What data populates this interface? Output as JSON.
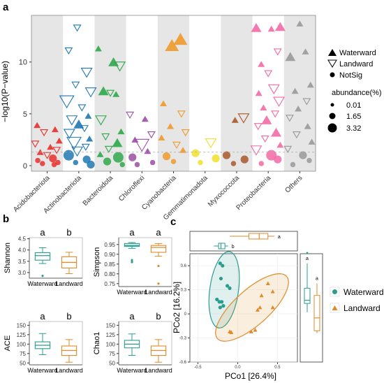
{
  "panel_labels": {
    "a": "a",
    "b": "b",
    "c": "c"
  },
  "colors": {
    "Acidobacteriota": "#e8302b",
    "Actinobacteriota": "#1f78b4",
    "Bacteroidota": "#2ea84a",
    "Chloroflexi": "#9b4da6",
    "Cyanobacteria": "#ee9a2a",
    "Gemmatimonadota": "#eee02a",
    "Myxococcota": "#a9572a",
    "Proteobacteria": "#f26aa5",
    "Others": "#999999",
    "waterward": "#2a9d8f",
    "landward": "#e08a2a",
    "band": "#e6e6e6"
  },
  "chart_data": [
    {
      "type": "scatter",
      "id": "manhattan",
      "ylabel": "−log10(P−value)",
      "yticks": [
        "0",
        "5",
        "10"
      ],
      "ylim": [
        0,
        14.5
      ],
      "categories": [
        "Acidobacteriota",
        "Actinobacteriota",
        "Bacteroidota",
        "Chloroflexi",
        "Cyanobacteria",
        "Gemmatimonadota",
        "Myxococcota",
        "Proteobacteria",
        "Others"
      ],
      "legend": {
        "shape_items": [
          "Waterward",
          "Landward",
          "NotSig"
        ],
        "size_title": "abundance(%)",
        "size_items": [
          "0.01",
          "1.65",
          "3.32"
        ]
      },
      "points": [
        {
          "cat": 0,
          "y": 3.9,
          "t": "W",
          "s": 1
        },
        {
          "cat": 0,
          "y": 3.5,
          "t": "W",
          "s": 1
        },
        {
          "cat": 0,
          "y": 3.2,
          "t": "L",
          "s": 1
        },
        {
          "cat": 0,
          "y": 2.4,
          "t": "W",
          "s": 1
        },
        {
          "cat": 0,
          "y": 2.1,
          "t": "L",
          "s": 1
        },
        {
          "cat": 0,
          "y": 1.8,
          "t": "W",
          "s": 1
        },
        {
          "cat": 0,
          "y": 1.5,
          "t": "L",
          "s": 1
        },
        {
          "cat": 0,
          "y": 1.3,
          "t": "W",
          "s": 1
        },
        {
          "cat": 0,
          "y": 1.0,
          "t": "L",
          "s": 1
        },
        {
          "cat": 0,
          "y": 0.7,
          "t": "N",
          "s": 2
        },
        {
          "cat": 0,
          "y": 0.5,
          "t": "N",
          "s": 1
        },
        {
          "cat": 0,
          "y": 0.3,
          "t": "N",
          "s": 1
        },
        {
          "cat": 0,
          "y": 0.2,
          "t": "N",
          "s": 1
        },
        {
          "cat": 0,
          "y": 0.1,
          "t": "N",
          "s": 1
        },
        {
          "cat": 1,
          "y": 13.3,
          "t": "L",
          "s": 1
        },
        {
          "cat": 1,
          "y": 11.1,
          "t": "L",
          "s": 1
        },
        {
          "cat": 1,
          "y": 9.0,
          "t": "L",
          "s": 2
        },
        {
          "cat": 1,
          "y": 7.8,
          "t": "L",
          "s": 1
        },
        {
          "cat": 1,
          "y": 7.1,
          "t": "L",
          "s": 2
        },
        {
          "cat": 1,
          "y": 6.2,
          "t": "L",
          "s": 3
        },
        {
          "cat": 1,
          "y": 5.6,
          "t": "L",
          "s": 1
        },
        {
          "cat": 1,
          "y": 4.8,
          "t": "W",
          "s": 1
        },
        {
          "cat": 1,
          "y": 4.4,
          "t": "L",
          "s": 2
        },
        {
          "cat": 1,
          "y": 4.0,
          "t": "W",
          "s": 2
        },
        {
          "cat": 1,
          "y": 3.6,
          "t": "L",
          "s": 1
        },
        {
          "cat": 1,
          "y": 3.1,
          "t": "L",
          "s": 2
        },
        {
          "cat": 1,
          "y": 2.6,
          "t": "W",
          "s": 1
        },
        {
          "cat": 1,
          "y": 2.2,
          "t": "L",
          "s": 3
        },
        {
          "cat": 1,
          "y": 1.8,
          "t": "L",
          "s": 1
        },
        {
          "cat": 1,
          "y": 1.4,
          "t": "L",
          "s": 2
        },
        {
          "cat": 1,
          "y": 1.0,
          "t": "N",
          "s": 3
        },
        {
          "cat": 1,
          "y": 0.6,
          "t": "N",
          "s": 2
        },
        {
          "cat": 1,
          "y": 0.3,
          "t": "N",
          "s": 1
        },
        {
          "cat": 1,
          "y": 0.1,
          "t": "N",
          "s": 2
        },
        {
          "cat": 2,
          "y": 11.3,
          "t": "W",
          "s": 1
        },
        {
          "cat": 2,
          "y": 10.0,
          "t": "W",
          "s": 2
        },
        {
          "cat": 2,
          "y": 9.6,
          "t": "L",
          "s": 2
        },
        {
          "cat": 2,
          "y": 7.2,
          "t": "W",
          "s": 2
        },
        {
          "cat": 2,
          "y": 7.0,
          "t": "L",
          "s": 1
        },
        {
          "cat": 2,
          "y": 6.9,
          "t": "W",
          "s": 1
        },
        {
          "cat": 2,
          "y": 4.4,
          "t": "L",
          "s": 2
        },
        {
          "cat": 2,
          "y": 3.3,
          "t": "W",
          "s": 1
        },
        {
          "cat": 2,
          "y": 2.8,
          "t": "L",
          "s": 1
        },
        {
          "cat": 2,
          "y": 2.2,
          "t": "W",
          "s": 2
        },
        {
          "cat": 2,
          "y": 1.6,
          "t": "L",
          "s": 1
        },
        {
          "cat": 2,
          "y": 1.1,
          "t": "W",
          "s": 1
        },
        {
          "cat": 2,
          "y": 0.8,
          "t": "N",
          "s": 3
        },
        {
          "cat": 2,
          "y": 0.4,
          "t": "N",
          "s": 2
        },
        {
          "cat": 2,
          "y": 0.1,
          "t": "N",
          "s": 1
        },
        {
          "cat": 3,
          "y": 4.9,
          "t": "L",
          "s": 1
        },
        {
          "cat": 3,
          "y": 4.5,
          "t": "W",
          "s": 1
        },
        {
          "cat": 3,
          "y": 3.0,
          "t": "L",
          "s": 1
        },
        {
          "cat": 3,
          "y": 2.5,
          "t": "W",
          "s": 1
        },
        {
          "cat": 3,
          "y": 2.0,
          "t": "L",
          "s": 3
        },
        {
          "cat": 3,
          "y": 1.4,
          "t": "W",
          "s": 1
        },
        {
          "cat": 3,
          "y": 0.8,
          "t": "N",
          "s": 2
        },
        {
          "cat": 3,
          "y": 0.3,
          "t": "N",
          "s": 1
        },
        {
          "cat": 3,
          "y": 0.1,
          "t": "N",
          "s": 1
        },
        {
          "cat": 4,
          "y": 12.2,
          "t": "W",
          "s": 3
        },
        {
          "cat": 4,
          "y": 11.6,
          "t": "W",
          "s": 3
        },
        {
          "cat": 4,
          "y": 6.0,
          "t": "W",
          "s": 1
        },
        {
          "cat": 4,
          "y": 5.0,
          "t": "L",
          "s": 1
        },
        {
          "cat": 4,
          "y": 3.8,
          "t": "W",
          "s": 1
        },
        {
          "cat": 4,
          "y": 3.2,
          "t": "L",
          "s": 1
        },
        {
          "cat": 4,
          "y": 2.7,
          "t": "W",
          "s": 1
        },
        {
          "cat": 4,
          "y": 2.0,
          "t": "L",
          "s": 1
        },
        {
          "cat": 4,
          "y": 1.5,
          "t": "W",
          "s": 1
        },
        {
          "cat": 4,
          "y": 0.9,
          "t": "N",
          "s": 2
        },
        {
          "cat": 4,
          "y": 0.4,
          "t": "N",
          "s": 1
        },
        {
          "cat": 5,
          "y": 2.2,
          "t": "L",
          "s": 2
        },
        {
          "cat": 5,
          "y": 1.2,
          "t": "N",
          "s": 2
        },
        {
          "cat": 5,
          "y": 0.7,
          "t": "N",
          "s": 2
        },
        {
          "cat": 5,
          "y": 0.3,
          "t": "N",
          "s": 1
        },
        {
          "cat": 6,
          "y": 4.6,
          "t": "L",
          "s": 2
        },
        {
          "cat": 6,
          "y": 4.4,
          "t": "W",
          "s": 1
        },
        {
          "cat": 6,
          "y": 1.0,
          "t": "N",
          "s": 2
        },
        {
          "cat": 6,
          "y": 0.6,
          "t": "N",
          "s": 2
        },
        {
          "cat": 6,
          "y": 0.2,
          "t": "N",
          "s": 1
        },
        {
          "cat": 7,
          "y": 13.4,
          "t": "W",
          "s": 2
        },
        {
          "cat": 7,
          "y": 13.3,
          "t": "W",
          "s": 2
        },
        {
          "cat": 7,
          "y": 13.2,
          "t": "W",
          "s": 1
        },
        {
          "cat": 7,
          "y": 11.0,
          "t": "L",
          "s": 1
        },
        {
          "cat": 7,
          "y": 9.8,
          "t": "W",
          "s": 1
        },
        {
          "cat": 7,
          "y": 8.9,
          "t": "L",
          "s": 1
        },
        {
          "cat": 7,
          "y": 7.4,
          "t": "L",
          "s": 2
        },
        {
          "cat": 7,
          "y": 7.0,
          "t": "W",
          "s": 1
        },
        {
          "cat": 7,
          "y": 6.2,
          "t": "L",
          "s": 2
        },
        {
          "cat": 7,
          "y": 5.6,
          "t": "W",
          "s": 1
        },
        {
          "cat": 7,
          "y": 5.0,
          "t": "L",
          "s": 1
        },
        {
          "cat": 7,
          "y": 4.4,
          "t": "W",
          "s": 2
        },
        {
          "cat": 7,
          "y": 3.8,
          "t": "L",
          "s": 1
        },
        {
          "cat": 7,
          "y": 3.2,
          "t": "W",
          "s": 2
        },
        {
          "cat": 7,
          "y": 2.6,
          "t": "L",
          "s": 1
        },
        {
          "cat": 7,
          "y": 2.0,
          "t": "W",
          "s": 1
        },
        {
          "cat": 7,
          "y": 1.5,
          "t": "L",
          "s": 2
        },
        {
          "cat": 7,
          "y": 1.0,
          "t": "N",
          "s": 3
        },
        {
          "cat": 7,
          "y": 0.6,
          "t": "N",
          "s": 2
        },
        {
          "cat": 7,
          "y": 0.2,
          "t": "N",
          "s": 1
        },
        {
          "cat": 8,
          "y": 13.7,
          "t": "W",
          "s": 1
        },
        {
          "cat": 8,
          "y": 11.0,
          "t": "W",
          "s": 1
        },
        {
          "cat": 8,
          "y": 10.5,
          "t": "W",
          "s": 2
        },
        {
          "cat": 8,
          "y": 7.8,
          "t": "W",
          "s": 1
        },
        {
          "cat": 8,
          "y": 7.2,
          "t": "W",
          "s": 1
        },
        {
          "cat": 8,
          "y": 6.2,
          "t": "L",
          "s": 1
        },
        {
          "cat": 8,
          "y": 5.5,
          "t": "W",
          "s": 1
        },
        {
          "cat": 8,
          "y": 4.6,
          "t": "L",
          "s": 1
        },
        {
          "cat": 8,
          "y": 3.8,
          "t": "W",
          "s": 1
        },
        {
          "cat": 8,
          "y": 3.0,
          "t": "L",
          "s": 1
        },
        {
          "cat": 8,
          "y": 2.3,
          "t": "W",
          "s": 1
        },
        {
          "cat": 8,
          "y": 1.6,
          "t": "L",
          "s": 1
        },
        {
          "cat": 8,
          "y": 1.0,
          "t": "N",
          "s": 2
        },
        {
          "cat": 8,
          "y": 0.5,
          "t": "N",
          "s": 1
        },
        {
          "cat": 8,
          "y": 0.1,
          "t": "N",
          "s": 1
        }
      ]
    },
    {
      "type": "box",
      "id": "shannon",
      "ylabel": "Shannon",
      "categories": [
        "Waterward",
        "Landward"
      ],
      "yticks": [
        "4.5",
        "4.0",
        "3.5",
        "3.0"
      ],
      "ylim": [
        2.75,
        4.55
      ],
      "boxes": [
        {
          "min": 3.4,
          "q1": 3.55,
          "median": 3.75,
          "q3": 3.88,
          "max": 4.1,
          "outliers": [
            2.85
          ]
        },
        {
          "min": 2.95,
          "q1": 3.2,
          "median": 3.45,
          "q3": 3.7,
          "max": 3.9,
          "outliers": []
        }
      ],
      "letters": [
        "a",
        "b"
      ]
    },
    {
      "type": "box",
      "id": "simpson",
      "ylabel": "Simpson",
      "categories": [
        "Waterward",
        "Landward"
      ],
      "yticks": [
        "0.95",
        "0.90",
        "0.85",
        "0.80",
        "0.75"
      ],
      "ylim": [
        0.735,
        0.985
      ],
      "boxes": [
        {
          "min": 0.93,
          "q1": 0.94,
          "median": 0.945,
          "q3": 0.955,
          "max": 0.96,
          "outliers": [
            0.87,
            0.86
          ]
        },
        {
          "min": 0.89,
          "q1": 0.91,
          "median": 0.935,
          "q3": 0.945,
          "max": 0.955,
          "outliers": [
            0.84,
            0.75
          ]
        }
      ],
      "letters": [
        "a",
        "a"
      ]
    },
    {
      "type": "box",
      "id": "ace",
      "ylabel": "ACE",
      "categories": [
        "Waterward",
        "Landward"
      ],
      "yticks": [
        "150",
        "125",
        "100",
        "75",
        "50"
      ],
      "ylim": [
        45,
        160
      ],
      "boxes": [
        {
          "min": 72,
          "q1": 88,
          "median": 97,
          "q3": 106,
          "max": 128,
          "outliers": []
        },
        {
          "min": 52,
          "q1": 70,
          "median": 83,
          "q3": 95,
          "max": 112,
          "outliers": []
        }
      ],
      "letters": [
        "a",
        "b"
      ]
    },
    {
      "type": "box",
      "id": "chao1",
      "ylabel": "Chao1",
      "categories": [
        "Waterward",
        "Landward"
      ],
      "yticks": [
        "150",
        "125",
        "100",
        "75",
        "50"
      ],
      "ylim": [
        45,
        160
      ],
      "boxes": [
        {
          "min": 70,
          "q1": 90,
          "median": 100,
          "q3": 110,
          "max": 127,
          "outliers": []
        },
        {
          "min": 52,
          "q1": 70,
          "median": 83,
          "q3": 95,
          "max": 112,
          "outliers": []
        }
      ],
      "letters": [
        "a",
        "b"
      ]
    },
    {
      "type": "scatter",
      "id": "pcoa",
      "xlabel": "PCo1 [26.4%]",
      "ylabel": "PCo2 [16.2%]",
      "xlim": [
        -0.6,
        0.75
      ],
      "ylim": [
        -0.6,
        0.75
      ],
      "xticks": [
        {
          "v": -0.5,
          "label": "-0.5"
        },
        {
          "v": 0.0,
          "label": "0.0"
        },
        {
          "v": 0.5,
          "label": "0.5"
        }
      ],
      "yticks": [
        {
          "v": 0.6,
          "label": "0.6"
        },
        {
          "v": 0.3,
          "label": "0.3"
        },
        {
          "v": 0.0,
          "label": "0"
        },
        {
          "v": -0.3,
          "label": "-0.3"
        },
        {
          "v": -0.6,
          "label": "-0.6"
        }
      ],
      "legend": [
        "Waterward",
        "Landward"
      ],
      "waterward": [
        [
          -0.22,
          0.63
        ],
        [
          -0.19,
          0.6
        ],
        [
          -0.21,
          0.44
        ],
        [
          -0.13,
          0.35
        ],
        [
          -0.1,
          0.32
        ],
        [
          -0.26,
          0.18
        ],
        [
          -0.23,
          0.15
        ],
        [
          -0.2,
          0.15
        ],
        [
          -0.18,
          0.1
        ],
        [
          -0.22,
          0.08
        ]
      ],
      "landward": [
        [
          0.38,
          0.38
        ],
        [
          0.44,
          0.28
        ],
        [
          0.3,
          0.23
        ],
        [
          0.28,
          0.08
        ],
        [
          0.44,
          0.08
        ],
        [
          0.25,
          0.05
        ],
        [
          -0.1,
          -0.22
        ],
        [
          0.17,
          -0.22
        ],
        [
          0.22,
          -0.2
        ],
        [
          -0.08,
          -0.23
        ]
      ],
      "ellipses": [
        {
          "group": "waterward",
          "cx": -0.17,
          "cy": 0.3,
          "rx": 0.18,
          "ry": 0.48,
          "angle": 8
        },
        {
          "group": "landward",
          "cx": 0.18,
          "cy": 0.08,
          "rx": 0.22,
          "ry": 0.58,
          "angle": 48
        }
      ],
      "top_box": [
        {
          "group": "waterward",
          "min": -0.3,
          "q1": -0.24,
          "median": -0.21,
          "q3": -0.16,
          "max": -0.12,
          "letter": "b"
        },
        {
          "group": "landward",
          "min": -0.1,
          "q1": 0.14,
          "median": 0.27,
          "q3": 0.38,
          "max": 0.46,
          "letter": "a"
        }
      ],
      "right_box": [
        {
          "group": "waterward",
          "min": 0.02,
          "q1": 0.13,
          "median": 0.17,
          "q3": 0.32,
          "max": 0.63,
          "letter": "a",
          "outliers": [
            0.76
          ]
        },
        {
          "group": "landward",
          "min": -0.24,
          "q1": -0.21,
          "median": -0.05,
          "q3": 0.23,
          "max": 0.38,
          "letter": "a",
          "outliers": []
        }
      ]
    }
  ]
}
